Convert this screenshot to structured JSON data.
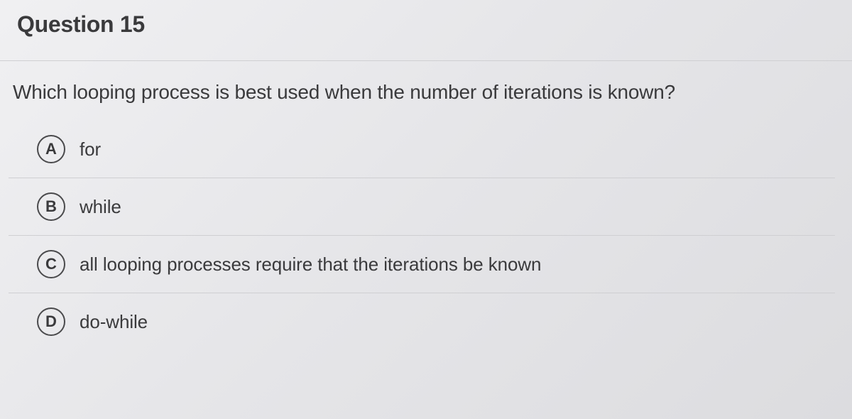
{
  "question": {
    "header": "Question 15",
    "text": "Which looping process is best used when the number of iterations is known?",
    "options": [
      {
        "letter": "A",
        "text": "for"
      },
      {
        "letter": "B",
        "text": "while"
      },
      {
        "letter": "C",
        "text": "all looping processes require that the iterations be known"
      },
      {
        "letter": "D",
        "text": "do-while"
      }
    ]
  },
  "colors": {
    "text_primary": "#3a3a3c",
    "border": "#cfcfd2",
    "option_circle_border": "#4a4a4c",
    "background": "#e8e8ea"
  }
}
